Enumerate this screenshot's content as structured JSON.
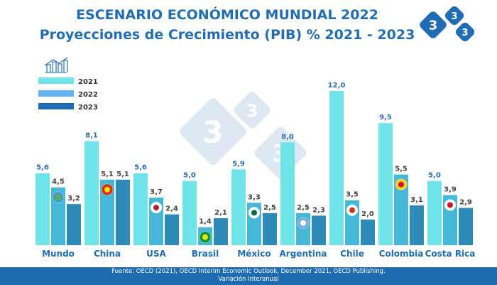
{
  "chart_data": {
    "type": "bar",
    "title": "ESCENARIO ECONÓMICO MUNDIAL 2022",
    "subtitle": "Proyecciones de Crecimiento (PIB) % 2021 - 2023",
    "categories": [
      "Mundo",
      "China",
      "USA",
      "Brasil",
      "México",
      "Argentina",
      "Chile",
      "Colombia",
      "Costa Rica"
    ],
    "series": [
      {
        "name": "2021",
        "values": [
          5.6,
          8.1,
          5.6,
          5.0,
          5.9,
          8.0,
          12.0,
          9.5,
          5.0
        ],
        "color": "#6ee3e8"
      },
      {
        "name": "2022",
        "values": [
          4.5,
          5.1,
          3.7,
          1.4,
          3.3,
          2.5,
          3.5,
          5.5,
          3.9
        ],
        "color": "#45b8d8"
      },
      {
        "name": "2023",
        "values": [
          3.2,
          5.1,
          2.4,
          2.1,
          2.5,
          2.3,
          2.0,
          3.1,
          2.9
        ],
        "color": "#2e8bb8"
      }
    ],
    "legend_colors": [
      "#6ee3e8",
      "#62b4f5",
      "#1f6db5"
    ],
    "ylim": [
      0,
      12.5
    ],
    "grid": false,
    "legend": "top-left",
    "flags": [
      "globe",
      "china",
      "usa",
      "brazil",
      "mexico",
      "argentina",
      "chile",
      "colombia",
      "costa-rica"
    ]
  },
  "logo": "333",
  "footer": {
    "line1": "Fuente: OECD (2021), OECD Interim Economic Outlook, December 2021, OECD Publishing.",
    "line2": "Variación Interanual"
  }
}
